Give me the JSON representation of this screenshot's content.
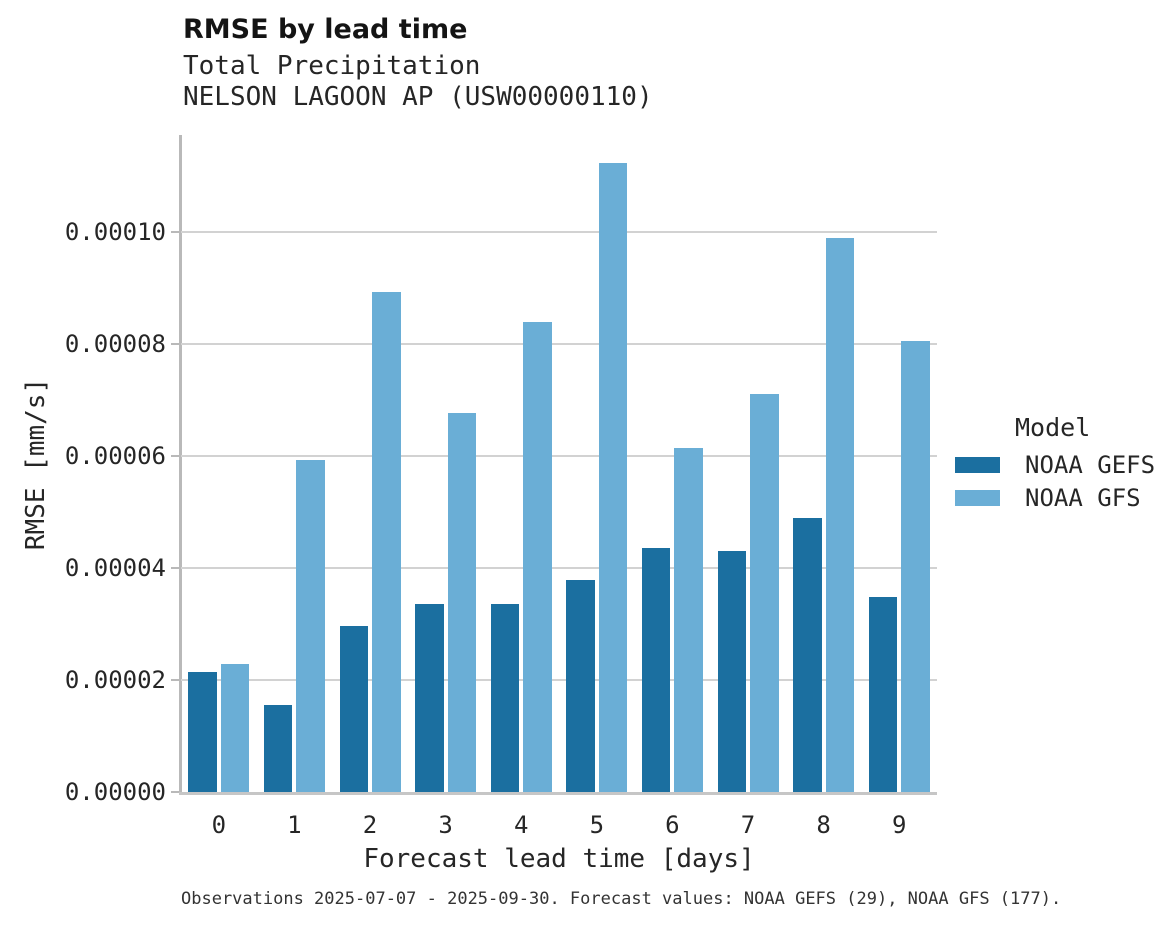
{
  "header": {
    "title": "RMSE by lead time",
    "subtitle_variable": "Total Precipitation",
    "subtitle_station": "NELSON LAGOON AP (USW00000110)"
  },
  "chart_data": {
    "type": "bar",
    "title": "RMSE by lead time",
    "subtitle": [
      "Total Precipitation",
      "NELSON LAGOON AP (USW00000110)"
    ],
    "xlabel": "Forecast lead time [days]",
    "ylabel": "RMSE [mm/s]",
    "categories": [
      "0",
      "1",
      "2",
      "3",
      "4",
      "5",
      "6",
      "7",
      "8",
      "9"
    ],
    "series": [
      {
        "name": "NOAA GEFS",
        "color": "#1b6fa0",
        "values": [
          2.15e-05,
          1.55e-05,
          2.96e-05,
          3.35e-05,
          3.36e-05,
          3.78e-05,
          4.35e-05,
          4.3e-05,
          4.9e-05,
          3.48e-05
        ]
      },
      {
        "name": "NOAA GFS",
        "color": "#6aaed6",
        "values": [
          2.28e-05,
          5.92e-05,
          8.92e-05,
          6.76e-05,
          8.4e-05,
          0.0001123,
          6.14e-05,
          7.1e-05,
          9.9e-05,
          8.06e-05
        ]
      }
    ],
    "ylim": [
      0,
      0.0001173
    ],
    "yticks": [
      0,
      2e-05,
      4e-05,
      6e-05,
      8e-05,
      0.0001
    ],
    "ytick_labels": [
      "0.00000",
      "0.00002",
      "0.00004",
      "0.00006",
      "0.00008",
      "0.00010"
    ],
    "grid": "horizontal",
    "legend_title": "Model",
    "legend_position": "right-of-plot"
  },
  "legend": {
    "title": "Model",
    "entries": [
      {
        "label": "NOAA GEFS",
        "color": "#1b6fa0"
      },
      {
        "label": "NOAA GFS",
        "color": "#6aaed6"
      }
    ]
  },
  "caption": "Observations 2025-07-07 - 2025-09-30. Forecast values: NOAA GEFS (29), NOAA GFS (177)."
}
